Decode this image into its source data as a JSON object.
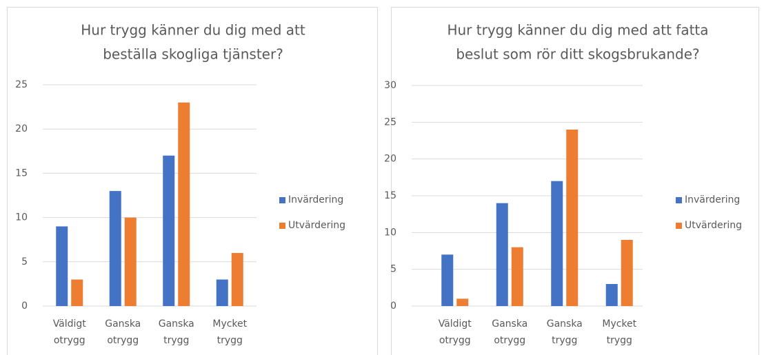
{
  "chart_data": [
    {
      "type": "bar",
      "title": [
        "Hur trygg känner du dig med att",
        "beställa skogliga tjänster?"
      ],
      "categories": [
        "Väldigt otrygg",
        "Ganska otrygg",
        "Ganska trygg",
        "Mycket trygg"
      ],
      "series": [
        {
          "name": "Invärdering",
          "color": "#4472c4",
          "values": [
            9,
            13,
            17,
            3
          ]
        },
        {
          "name": "Utvärdering",
          "color": "#ed7d31",
          "values": [
            3,
            10,
            23,
            6
          ]
        }
      ],
      "ylim": [
        0,
        25
      ],
      "yticks": [
        0,
        5,
        10,
        15,
        20,
        25
      ],
      "grid": true,
      "legend": "right"
    },
    {
      "type": "bar",
      "title": [
        "Hur trygg känner du dig med att fatta",
        "beslut som rör ditt skogsbrukande?"
      ],
      "categories": [
        "Väldigt otrygg",
        "Ganska otrygg",
        "Ganska trygg",
        "Mycket trygg"
      ],
      "series": [
        {
          "name": "Invärdering",
          "color": "#4472c4",
          "values": [
            7,
            14,
            17,
            3
          ]
        },
        {
          "name": "Utvärdering",
          "color": "#ed7d31",
          "values": [
            1,
            8,
            24,
            9
          ]
        }
      ],
      "ylim": [
        0,
        30
      ],
      "yticks": [
        0,
        5,
        10,
        15,
        20,
        25,
        30
      ],
      "grid": true,
      "legend": "right"
    }
  ]
}
